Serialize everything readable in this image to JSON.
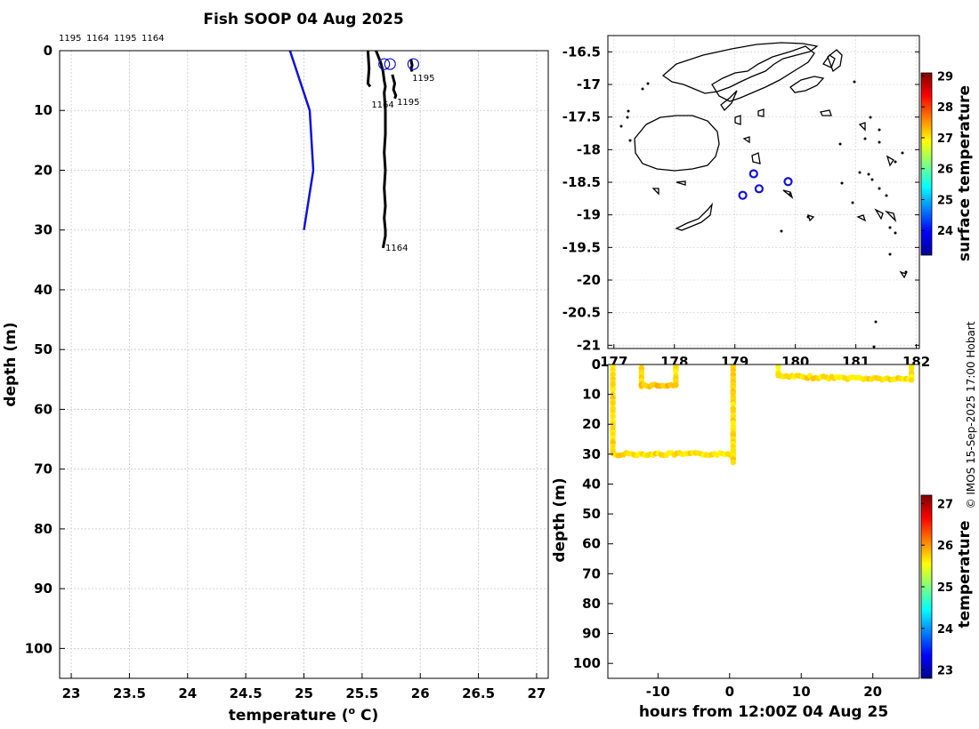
{
  "figure": {
    "title": "Fish SOOP 04 Aug 2025",
    "credit": "© IMOS 15-Sep-2025 17:00 Hobart"
  },
  "chart_data": [
    {
      "type": "line",
      "name": "temperature-profile",
      "title": "Fish SOOP 04 Aug 2025",
      "xlabel": "temperature (°C)",
      "xlabel_parts": [
        "temperature (",
        "o",
        " C)"
      ],
      "ylabel": "depth (m)",
      "xlim": [
        22.9,
        27.1
      ],
      "ylim": [
        105,
        0
      ],
      "xticks": [
        23,
        23.5,
        24,
        24.5,
        25,
        25.5,
        26,
        26.5,
        27
      ],
      "xtick_labels": [
        "23",
        "23.5",
        "24",
        "24.5",
        "25",
        "25.5",
        "26",
        "26.5",
        "27"
      ],
      "yticks": [
        0,
        10,
        20,
        30,
        40,
        50,
        60,
        70,
        80,
        90,
        100
      ],
      "ytick_labels": [
        "0",
        "10",
        "20",
        "30",
        "40",
        "50",
        "60",
        "70",
        "80",
        "90",
        "100"
      ],
      "grid": true,
      "top_labels": [
        "1195",
        "1164",
        "1195",
        "1164"
      ],
      "series": [
        {
          "name": "reference",
          "color": "#1010dd",
          "x": [
            24.88,
            25.05,
            25.08,
            25.0
          ],
          "y": [
            0,
            10,
            20,
            30
          ]
        },
        {
          "name": "1164",
          "color": "#000000",
          "x": [
            25.62,
            25.66,
            25.68,
            25.69,
            25.7,
            25.69,
            25.7,
            25.7,
            25.69,
            25.7,
            25.69,
            25.7,
            25.69,
            25.7,
            25.7,
            25.68
          ],
          "y": [
            0,
            2,
            3.5,
            5,
            6,
            7,
            10,
            14,
            17,
            20,
            23,
            26,
            28,
            30,
            31,
            33
          ]
        },
        {
          "name": "1195",
          "color": "#000000",
          "x": [
            25.92,
            25.93,
            25.92,
            25.93
          ],
          "y": [
            1.5,
            2.5,
            3.0,
            3.5
          ]
        },
        {
          "name": "1195-b",
          "color": "#000000",
          "x": [
            25.76,
            25.78,
            25.77,
            25.79,
            25.78
          ],
          "y": [
            4,
            5.5,
            6.5,
            7.5,
            8
          ]
        },
        {
          "name": "1164-b",
          "color": "#000000",
          "x": [
            25.55,
            25.56,
            25.55,
            25.57
          ],
          "y": [
            0,
            3,
            5.5,
            6
          ]
        }
      ],
      "surface_markers": {
        "x": [
          25.69,
          25.74,
          25.94
        ],
        "y": [
          1.2,
          1.2,
          1.2
        ],
        "color": "#1010dd"
      },
      "annotations": [
        {
          "text": "1195",
          "x": 25.93,
          "y": 3.6
        },
        {
          "text": "1164",
          "x": 25.58,
          "y": 8.0
        },
        {
          "text": "1195",
          "x": 25.8,
          "y": 7.6
        },
        {
          "text": "1164",
          "x": 25.7,
          "y": 32.0
        }
      ]
    },
    {
      "type": "scatter",
      "name": "position-map",
      "xlim": [
        176.9,
        182.05
      ],
      "ylim": [
        -21.05,
        -16.25
      ],
      "xticks": [
        177,
        178,
        179,
        180,
        181,
        182
      ],
      "xtick_labels": [
        "177",
        "178",
        "179",
        "180",
        "181",
        "182"
      ],
      "yticks": [
        -16.5,
        -17,
        -17.5,
        -18,
        -18.5,
        -19,
        -19.5,
        -20,
        -20.5,
        -21
      ],
      "ytick_labels": [
        "-16.5",
        "-17",
        "-17.5",
        "-18",
        "-18.5",
        "-19",
        "-19.5",
        "-20",
        "-20.5",
        "-21"
      ],
      "grid": true,
      "points": {
        "lon": [
          179.13,
          179.31,
          179.4,
          179.88
        ],
        "lat": [
          -18.7,
          -18.37,
          -18.6,
          -18.49
        ],
        "color": "#1010dd"
      },
      "colorbar": {
        "label": "surface temperature",
        "range": [
          23.2,
          29.1
        ],
        "ticks": [
          24,
          25,
          26,
          27,
          28,
          29
        ],
        "tick_labels": [
          "24",
          "25",
          "26",
          "27",
          "28",
          "29"
        ]
      }
    },
    {
      "type": "scatter",
      "name": "depth-time",
      "xlabel": "hours from 12:00Z 04 Aug 25",
      "ylabel": "depth (m)",
      "xlim": [
        -17,
        26.5
      ],
      "ylim": [
        105,
        0
      ],
      "xticks": [
        -10,
        0,
        10,
        20
      ],
      "xtick_labels": [
        "-10",
        "0",
        "10",
        "20"
      ],
      "yticks": [
        0,
        10,
        20,
        30,
        40,
        50,
        60,
        70,
        80,
        90,
        100
      ],
      "ytick_labels": [
        "0",
        "10",
        "20",
        "30",
        "40",
        "50",
        "60",
        "70",
        "80",
        "90",
        "100"
      ],
      "grid": false,
      "segments": [
        {
          "t": [
            -16.3,
            -16.3
          ],
          "depth": [
            0,
            30
          ],
          "temp": 25.7
        },
        {
          "t": [
            -16.3,
            0.5
          ],
          "depth": [
            30,
            30
          ],
          "temp": 25.7
        },
        {
          "t": [
            0.5,
            0.5
          ],
          "depth": [
            0,
            33
          ],
          "temp": 25.7
        },
        {
          "t": [
            -12.3,
            -12.3
          ],
          "depth": [
            0,
            7
          ],
          "temp": 25.7
        },
        {
          "t": [
            -12.3,
            -7.5
          ],
          "depth": [
            7,
            7
          ],
          "temp": 25.8
        },
        {
          "t": [
            -7.5,
            -7.5
          ],
          "depth": [
            0,
            7
          ],
          "temp": 25.7
        },
        {
          "t": [
            6.8,
            6.8
          ],
          "depth": [
            0,
            4
          ],
          "temp": 25.6
        },
        {
          "t": [
            6.8,
            25.4
          ],
          "depth": [
            4,
            5
          ],
          "temp": 25.7
        },
        {
          "t": [
            25.4,
            25.4
          ],
          "depth": [
            0,
            5
          ],
          "temp": 25.6
        }
      ],
      "colorbar": {
        "label": "temperature",
        "range": [
          22.8,
          27.2
        ],
        "ticks": [
          23,
          24,
          25,
          26,
          27
        ],
        "tick_labels": [
          "23",
          "24",
          "25",
          "26",
          "27"
        ]
      }
    }
  ]
}
